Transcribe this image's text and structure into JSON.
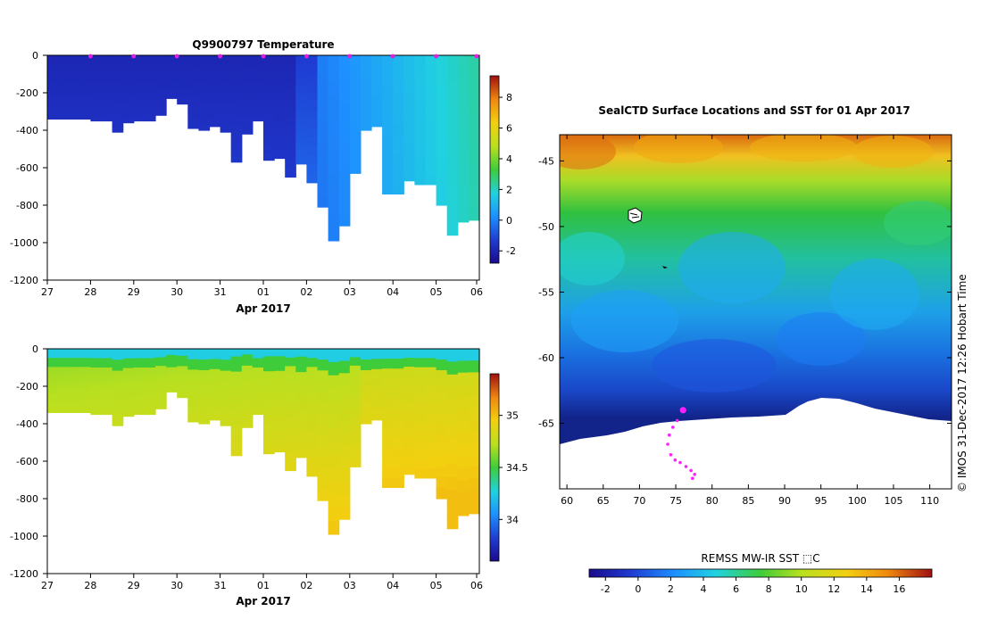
{
  "chart_data": [
    {
      "type": "heatmap",
      "title": "Q9900797  Temperature",
      "xlabel": "Apr 2017",
      "x_ticks": [
        "27",
        "28",
        "29",
        "30",
        "31",
        "01",
        "02",
        "03",
        "04",
        "05",
        "06"
      ],
      "y_ticks": [
        "0",
        "-200",
        "-400",
        "-600",
        "-800",
        "-1000",
        "-1200"
      ],
      "ylim": [
        -1200,
        0
      ],
      "colorbar_ticks": [
        "-2",
        "0",
        "2",
        "4",
        "6",
        "8"
      ],
      "colorbar_range": [
        -2.8,
        9.4
      ],
      "profile_bottom_depths": [
        -340,
        -340,
        -340,
        -340,
        -350,
        -350,
        -410,
        -360,
        -350,
        -350,
        -320,
        -230,
        -260,
        -390,
        -400,
        -380,
        -410,
        -570,
        -420,
        -350,
        -560,
        -550,
        -650,
        -580,
        -680,
        -810,
        -990,
        -910,
        -630,
        -400,
        -380,
        -740,
        -740,
        -670,
        -690,
        -690,
        -800,
        -960,
        -890,
        -880
      ],
      "surface_markers_days": [
        1,
        2,
        3,
        4,
        5,
        6,
        7,
        8,
        9,
        10
      ]
    },
    {
      "type": "heatmap",
      "title": "",
      "xlabel": "Apr 2017",
      "x_ticks": [
        "27",
        "28",
        "29",
        "30",
        "31",
        "01",
        "02",
        "03",
        "04",
        "05",
        "06"
      ],
      "y_ticks": [
        "0",
        "-200",
        "-400",
        "-600",
        "-800",
        "-1000",
        "-1200"
      ],
      "ylim": [
        -1200,
        0
      ],
      "colorbar_ticks": [
        "34",
        "34.5",
        "35"
      ],
      "colorbar_range": [
        33.6,
        35.4
      ]
    },
    {
      "type": "heatmap",
      "title": "SealCTD Surface Locations and SST for 01 Apr 2017",
      "x_ticks": [
        "60",
        "65",
        "70",
        "75",
        "80",
        "85",
        "90",
        "95",
        "100",
        "105",
        "110"
      ],
      "y_ticks": [
        "-45",
        "-50",
        "-55",
        "-60",
        "-65"
      ],
      "xlim": [
        59,
        113
      ],
      "ylim": [
        -70,
        -43
      ],
      "colorbar_label": "REMSS MW-IR SST ⬚C",
      "colorbar_ticks": [
        "-2",
        "0",
        "2",
        "4",
        "6",
        "8",
        "10",
        "12",
        "14",
        "16"
      ],
      "colorbar_range": [
        -3,
        18
      ],
      "track_points": [
        {
          "lon": 76.0,
          "lat": -64.0
        },
        {
          "lon": 75.2,
          "lat": -64.8
        },
        {
          "lon": 74.6,
          "lat": -65.3
        },
        {
          "lon": 74.1,
          "lat": -65.9
        },
        {
          "lon": 73.9,
          "lat": -66.6
        },
        {
          "lon": 74.3,
          "lat": -67.4
        },
        {
          "lon": 74.9,
          "lat": -67.8
        },
        {
          "lon": 75.6,
          "lat": -68.0
        },
        {
          "lon": 76.4,
          "lat": -68.3
        },
        {
          "lon": 77.1,
          "lat": -68.6
        },
        {
          "lon": 77.6,
          "lat": -68.9
        },
        {
          "lon": 77.3,
          "lat": -69.2
        }
      ]
    }
  ],
  "credit": "© IMOS 31-Dec-2017 12:26 Hobart Time"
}
